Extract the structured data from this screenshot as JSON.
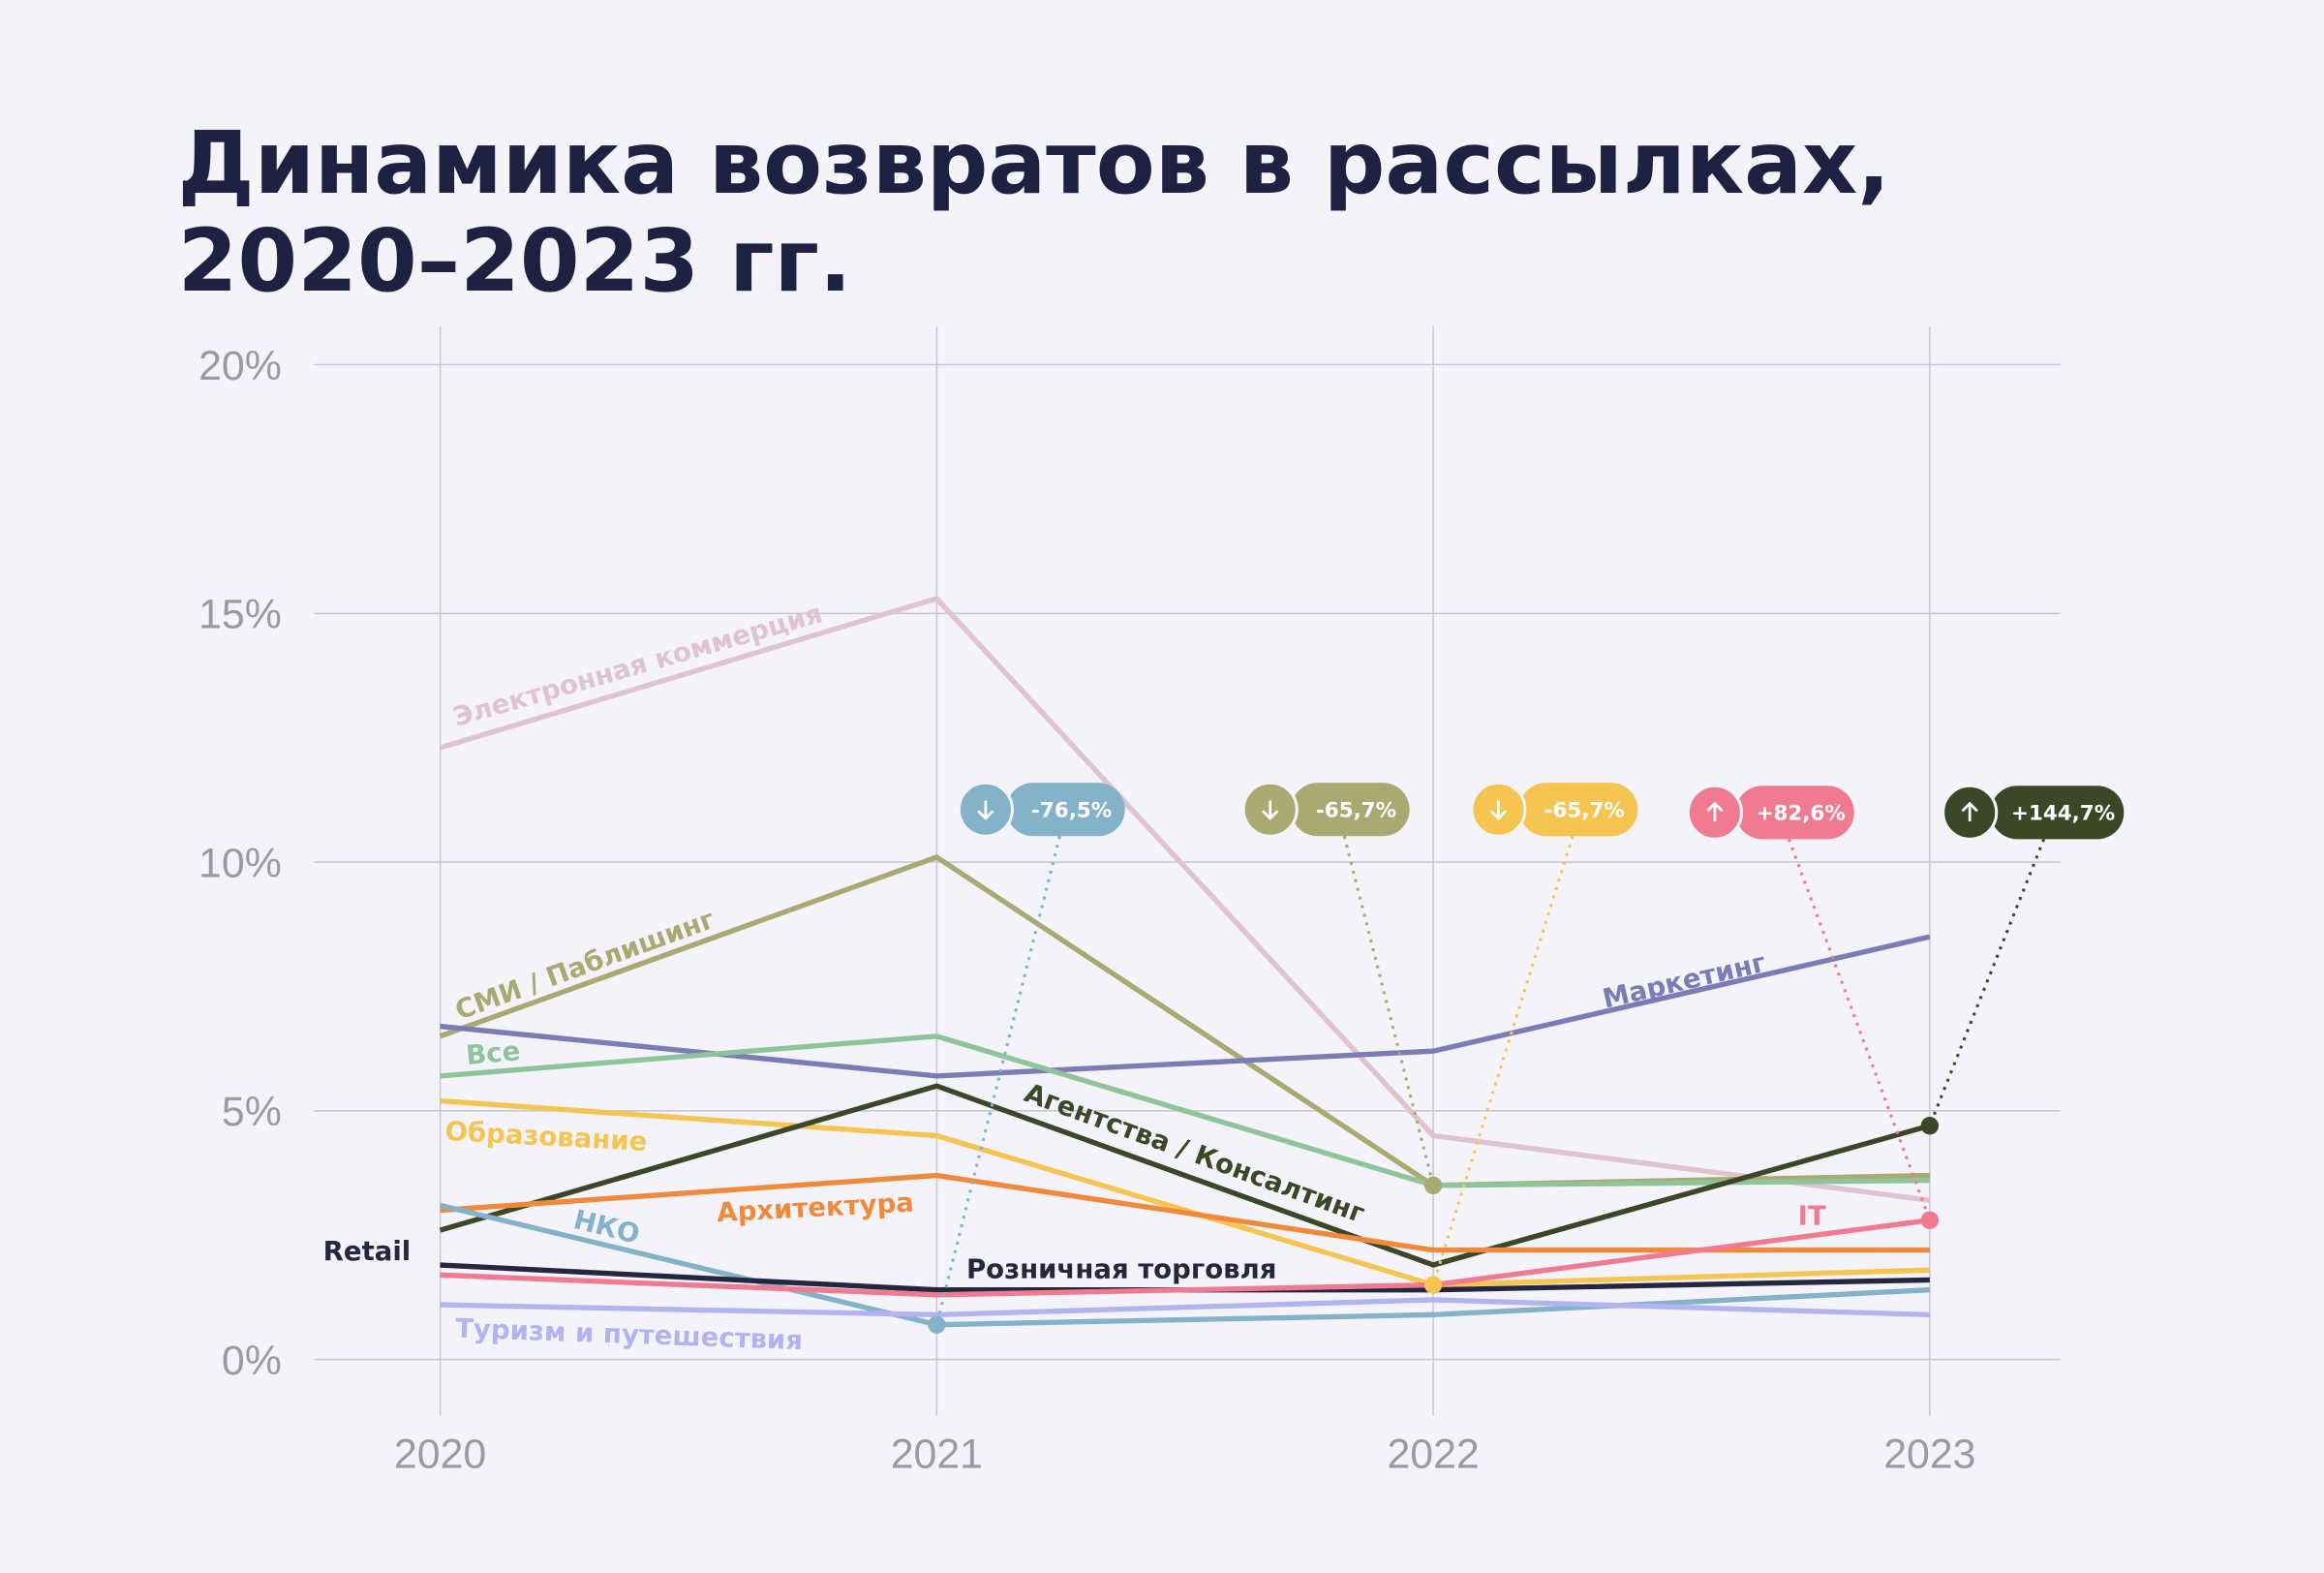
{
  "chart_data": {
    "type": "line",
    "title": [
      "Динамика возвратов в рассылках,",
      "2020–2023 гг."
    ],
    "categories": [
      "2020",
      "2021",
      "2022",
      "2023"
    ],
    "ylim": [
      0,
      20
    ],
    "yticks": [
      {
        "value": 0,
        "label": "0%"
      },
      {
        "value": 5,
        "label": "5%"
      },
      {
        "value": 10,
        "label": "10%"
      },
      {
        "value": 15,
        "label": "15%"
      },
      {
        "value": 20,
        "label": "20%"
      }
    ],
    "grid": true,
    "series": [
      {
        "name": "Электронная коммерция",
        "color": "#dfc3cd",
        "values": [
          12.3,
          15.3,
          4.5,
          3.2
        ]
      },
      {
        "name": "СМИ / Паблишинг",
        "color": "#a8aa72",
        "values": [
          6.5,
          10.1,
          3.5,
          3.7
        ]
      },
      {
        "name": "Маркетинг",
        "color": "#7b7bb6",
        "values": [
          6.7,
          5.7,
          6.2,
          8.5
        ]
      },
      {
        "name": "Все",
        "color": "#8fc49b",
        "values": [
          5.7,
          6.5,
          3.5,
          3.6
        ]
      },
      {
        "name": "Образование",
        "color": "#f5c451",
        "values": [
          5.2,
          4.5,
          1.5,
          1.8
        ]
      },
      {
        "name": "Агентства / Консалтинг",
        "color": "#3b4726",
        "values": [
          2.6,
          5.5,
          1.9,
          4.7
        ]
      },
      {
        "name": "Архитектура",
        "color": "#f08a3a",
        "values": [
          3.0,
          3.7,
          2.2,
          2.2
        ]
      },
      {
        "name": "НКО",
        "color": "#84b3c9",
        "values": [
          3.1,
          0.7,
          0.9,
          1.4
        ]
      },
      {
        "name": "Розничная торговля",
        "color": "#25263f",
        "values": [
          1.9,
          1.4,
          1.4,
          1.6
        ]
      },
      {
        "name": "IT",
        "color": "#f07a90",
        "values": [
          1.7,
          1.3,
          1.5,
          2.8
        ]
      },
      {
        "name": "Туризм и путешествия",
        "color": "#b3b3f2",
        "values": [
          1.1,
          0.9,
          1.2,
          0.9
        ]
      }
    ],
    "annotations": [
      {
        "text": "Retail"
      },
      {
        "text": "-76,5%",
        "direction": "down"
      },
      {
        "text": "-65,7%",
        "direction": "down"
      },
      {
        "text": "-65,7%",
        "direction": "down"
      },
      {
        "text": "+82,6%",
        "direction": "up"
      },
      {
        "text": "+144,7%",
        "direction": "up"
      }
    ]
  }
}
